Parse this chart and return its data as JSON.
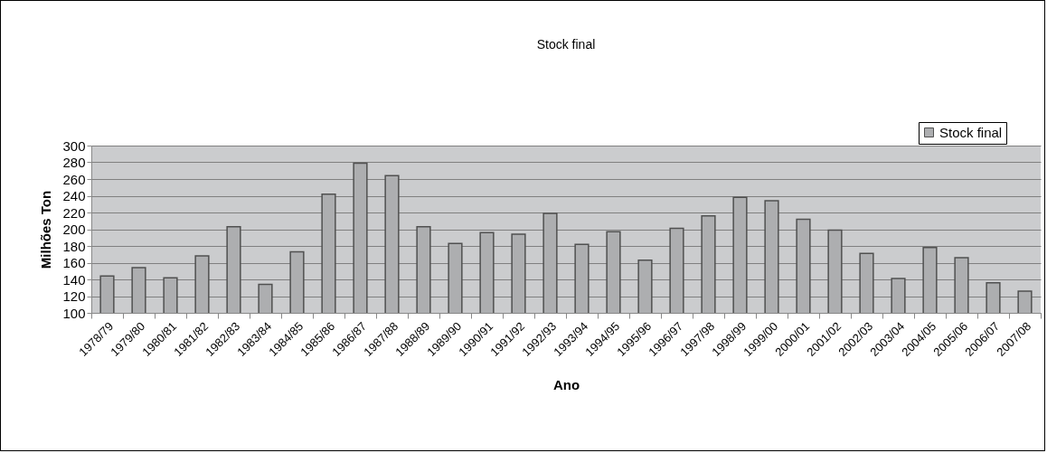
{
  "chart_data": {
    "type": "bar",
    "title": "Stock final",
    "xlabel": "Ano",
    "ylabel": "Milhões Ton",
    "categories": [
      "1978/79",
      "1979/80",
      "1980/81",
      "1981/82",
      "1982/83",
      "1983/84",
      "1984/85",
      "1985/86",
      "1986/87",
      "1987/88",
      "1988/89",
      "1989/90",
      "1990/91",
      "1991/92",
      "1992/93",
      "1993/94",
      "1994/95",
      "1995/96",
      "1996/97",
      "1997/98",
      "1998/99",
      "1999/00",
      "2000/01",
      "2001/02",
      "2002/03",
      "2003/04",
      "2004/05",
      "2005/06",
      "2006/07",
      "2007/08"
    ],
    "series": [
      {
        "name": "Stock final",
        "color": "#adaeb0",
        "values": [
          144,
          154,
          142,
          168,
          203,
          134,
          173,
          242,
          279,
          264,
          203,
          183,
          196,
          194,
          219,
          182,
          197,
          163,
          201,
          216,
          238,
          234,
          212,
          199,
          171,
          141,
          178,
          166,
          136,
          126
        ]
      }
    ],
    "ylim": [
      100,
      300
    ],
    "yticks": [
      100,
      120,
      140,
      160,
      180,
      200,
      220,
      240,
      260,
      280,
      300
    ],
    "grid": "y",
    "legend": "top right"
  }
}
